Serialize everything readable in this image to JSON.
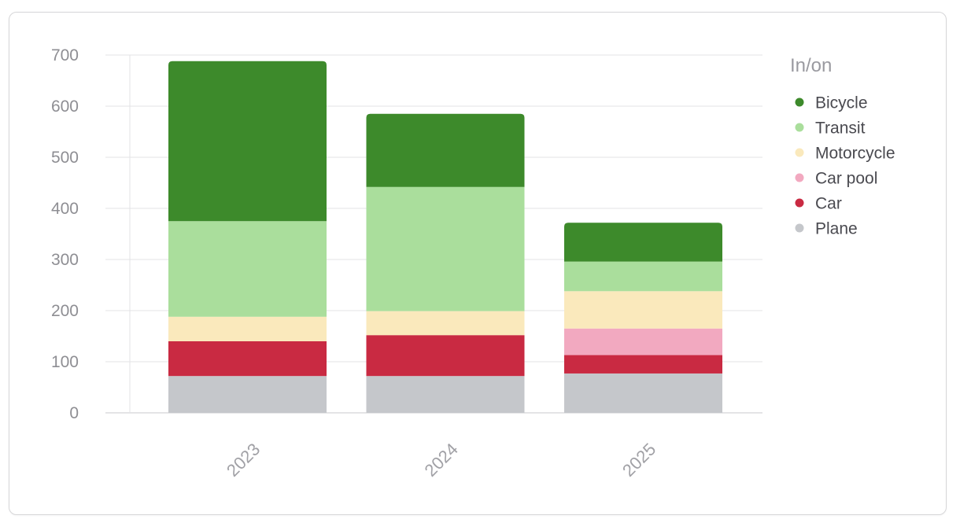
{
  "chart_data": {
    "type": "bar",
    "stacked": true,
    "categories": [
      "2023",
      "2024",
      "2025"
    ],
    "series": [
      {
        "name": "Plane",
        "color": "#c5c7cb",
        "values": [
          72,
          72,
          77
        ]
      },
      {
        "name": "Car",
        "color": "#c92a42",
        "values": [
          68,
          80,
          36
        ]
      },
      {
        "name": "Car pool",
        "color": "#f2a9c0",
        "values": [
          0,
          0,
          52
        ]
      },
      {
        "name": "Motorcycle",
        "color": "#fae9bc",
        "values": [
          48,
          47,
          73
        ]
      },
      {
        "name": "Transit",
        "color": "#aade9c",
        "values": [
          187,
          243,
          58
        ]
      },
      {
        "name": "Bicycle",
        "color": "#3d8a2b",
        "values": [
          313,
          143,
          76
        ]
      }
    ],
    "ylim": [
      0,
      700
    ],
    "yticks": [
      "0",
      "100",
      "200",
      "300",
      "400",
      "500",
      "600",
      "700"
    ],
    "grid": true,
    "legend": {
      "title": "In/on",
      "placement": "right",
      "order": [
        "Bicycle",
        "Transit",
        "Motorcycle",
        "Car pool",
        "Car",
        "Plane"
      ]
    }
  }
}
